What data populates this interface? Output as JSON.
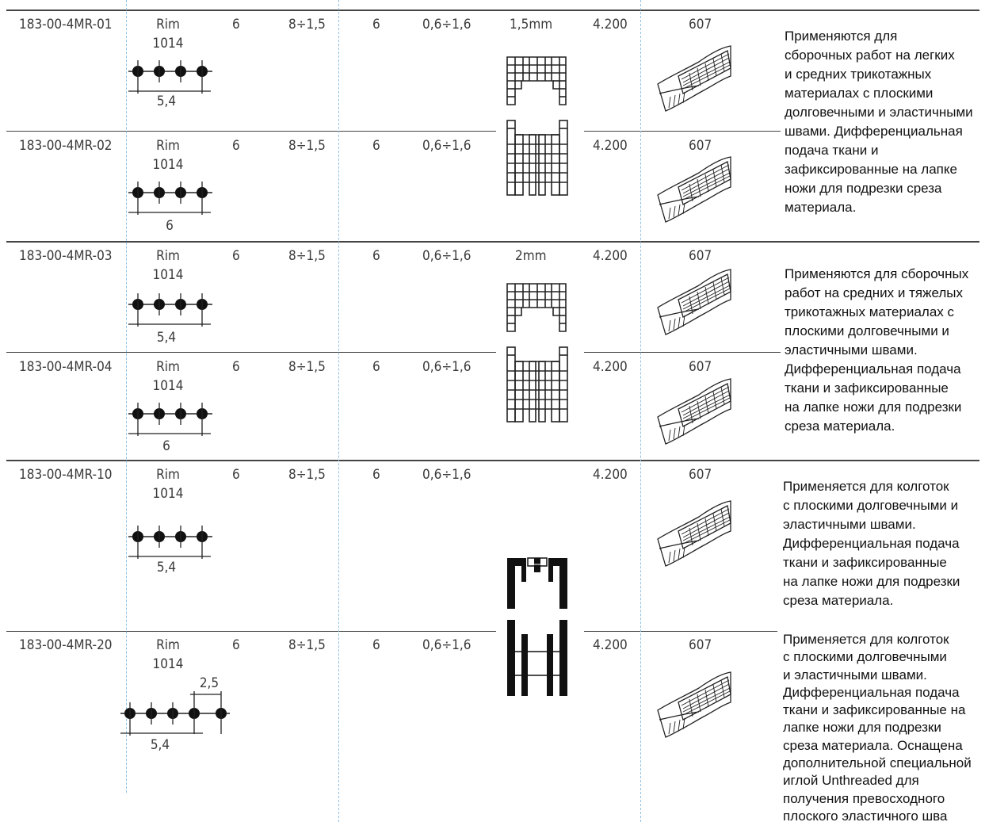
{
  "rows": [
    {
      "code": "183-00-4MR-01",
      "label_top": "Rim",
      "label_bottom": "1014",
      "c3": "6",
      "c4": "8÷1,5",
      "c5": "6",
      "c6": "0,6÷1,6",
      "c7": "1,5mm",
      "c8": "4.200",
      "c9": "607",
      "gauge": "5,4"
    },
    {
      "code": "183-00-4MR-02",
      "label_top": "Rim",
      "label_bottom": "1014",
      "c3": "6",
      "c4": "8÷1,5",
      "c5": "6",
      "c6": "0,6÷1,6",
      "c7": "",
      "c8": "4.200",
      "c9": "607",
      "gauge": "6"
    },
    {
      "code": "183-00-4MR-03",
      "label_top": "Rim",
      "label_bottom": "1014",
      "c3": "6",
      "c4": "8÷1,5",
      "c5": "6",
      "c6": "0,6÷1,6",
      "c7": "2mm",
      "c8": "4.200",
      "c9": "607",
      "gauge": "5,4"
    },
    {
      "code": "183-00-4MR-04",
      "label_top": "Rim",
      "label_bottom": "1014",
      "c3": "6",
      "c4": "8÷1,5",
      "c5": "6",
      "c6": "0,6÷1,6",
      "c7": "",
      "c8": "4.200",
      "c9": "607",
      "gauge": "6"
    },
    {
      "code": "183-00-4MR-10",
      "label_top": "Rim",
      "label_bottom": "1014",
      "c3": "6",
      "c4": "8÷1,5",
      "c5": "6",
      "c6": "0,6÷1,6",
      "c7": "",
      "c8": "4.200",
      "c9": "607",
      "gauge": "5,4"
    },
    {
      "code": "183-00-4MR-20",
      "label_top": "Rim",
      "label_bottom": "1014",
      "c3": "6",
      "c4": "8÷1,5",
      "c5": "6",
      "c6": "0,6÷1,6",
      "c7": "",
      "c8": "4.200",
      "c9": "607",
      "gauge": "5,4",
      "gauge_extra": "2,5"
    }
  ],
  "descriptions": [
    [
      "Применяются для",
      "сборочных работ на легких",
      "и средних трикотажных",
      "материалах с плоскими",
      "долговечными и эластичными",
      "швами. Дифференциальная",
      "подача ткани и",
      "зафиксированные на лапке",
      "ножи для подрезки среза",
      "материала."
    ],
    [
      "Применяются для сборочных",
      "работ на средних и тяжелых",
      "трикотажных материалах с",
      "плоскими долговечными и",
      "эластичными швами.",
      "Дифференциальная подача",
      "ткани и зафиксированные",
      "на лапке ножи для подрезки",
      "среза материала."
    ],
    [
      "Применяется для колготок",
      "с плоскими долговечными и",
      "эластичными швами.",
      "Дифференциальная подача",
      "ткани и зафиксированные",
      "на лапке ножи для подрезки",
      "среза материала."
    ],
    [
      "Применяется для колготок",
      "с плоскими долговечными",
      "и эластичными швами.",
      "Дифференциальная подача",
      "ткани и зафиксированные на",
      "лапке ножи для подрезки",
      "среза материала. Оснащена",
      "дополнительной специальной",
      "иглой Unthreaded для",
      "получения превосходного",
      "плоского эластичного шва"
    ]
  ],
  "colors": {
    "rule": "#444444",
    "guide": "#8fc1e6",
    "text": "#3a3a3a"
  }
}
